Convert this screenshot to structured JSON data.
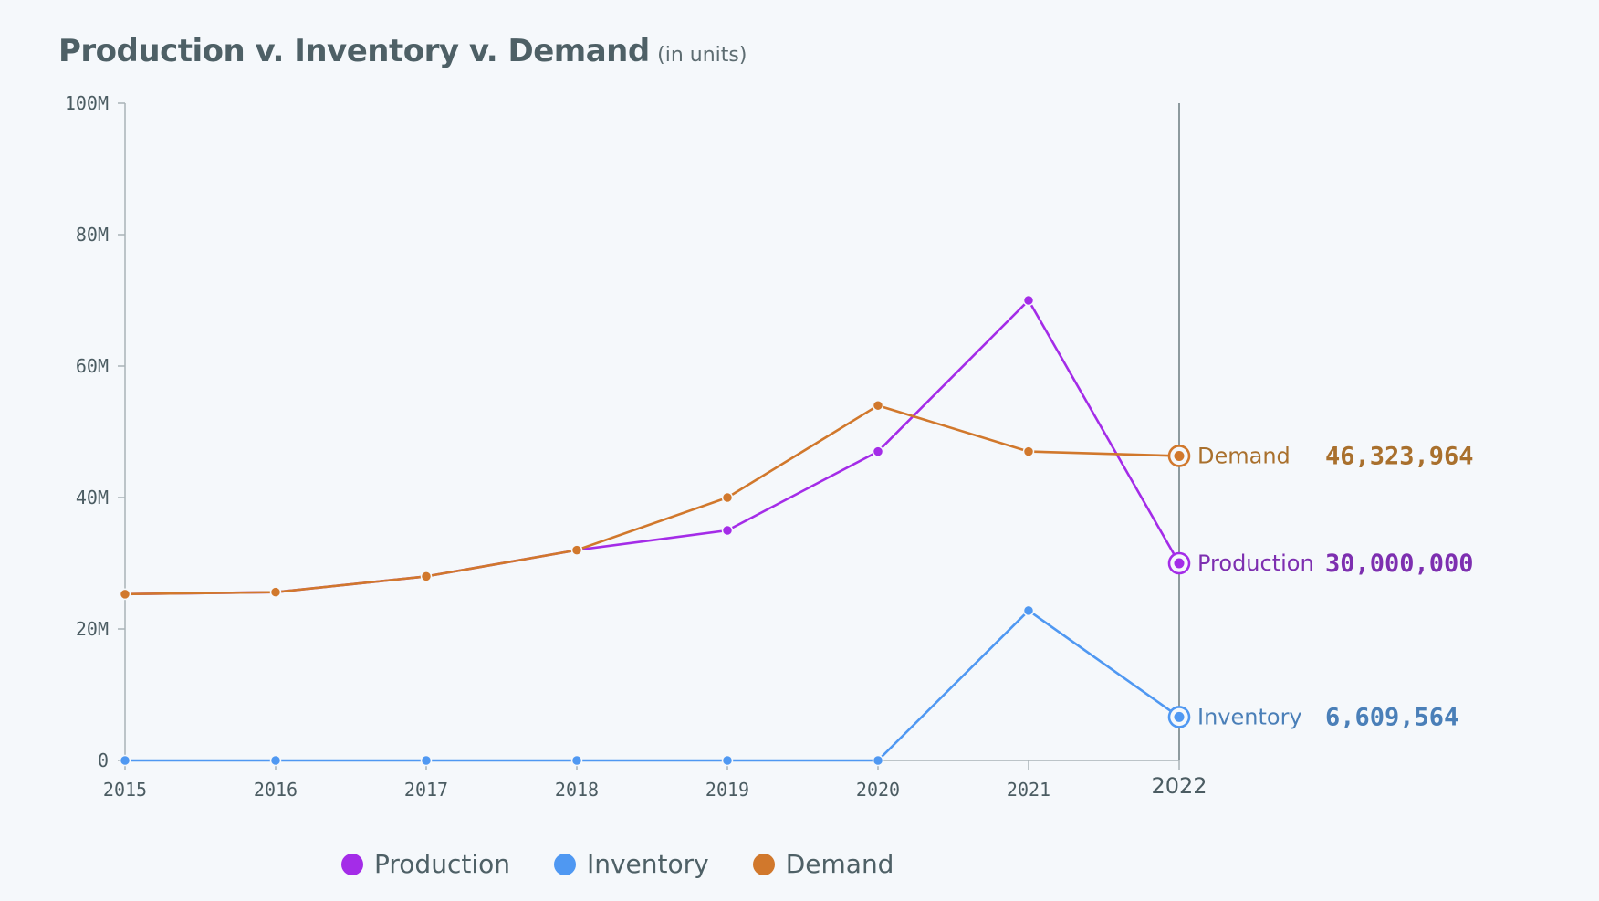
{
  "header": {
    "title": "Production v. Inventory v. Demand",
    "subtitle": "(in units)"
  },
  "chart_data": {
    "type": "line",
    "title": "Production v. Inventory v. Demand",
    "subtitle": "(in units)",
    "x": [
      "2015",
      "2016",
      "2017",
      "2018",
      "2019",
      "2020",
      "2021",
      "2022"
    ],
    "ylim": [
      0,
      100000000
    ],
    "yticks": [
      {
        "value": 0,
        "label": "0"
      },
      {
        "value": 20000000,
        "label": "20M"
      },
      {
        "value": 40000000,
        "label": "40M"
      },
      {
        "value": 60000000,
        "label": "60M"
      },
      {
        "value": 80000000,
        "label": "80M"
      },
      {
        "value": 100000000,
        "label": "100M"
      }
    ],
    "grid": false,
    "legend_position": "bottom",
    "hover_index": 7,
    "series": [
      {
        "name": "Production",
        "color": "#a42ce8",
        "value_color": "#7d2fb0",
        "hover_value": "30,000,000",
        "values": [
          25300000,
          25600000,
          28000000,
          32000000,
          35000000,
          47000000,
          70000000,
          30000000
        ]
      },
      {
        "name": "Inventory",
        "color": "#4f98f2",
        "value_color": "#4a7fb8",
        "hover_value": "6,609,564",
        "values": [
          0,
          0,
          0,
          0,
          0,
          0,
          22800000,
          6609564
        ]
      },
      {
        "name": "Demand",
        "color": "#d1782c",
        "value_color": "#a9702d",
        "hover_value": "46,323,964",
        "values": [
          25300000,
          25600000,
          28000000,
          32000000,
          40000000,
          54000000,
          47000000,
          46323964
        ]
      }
    ]
  }
}
